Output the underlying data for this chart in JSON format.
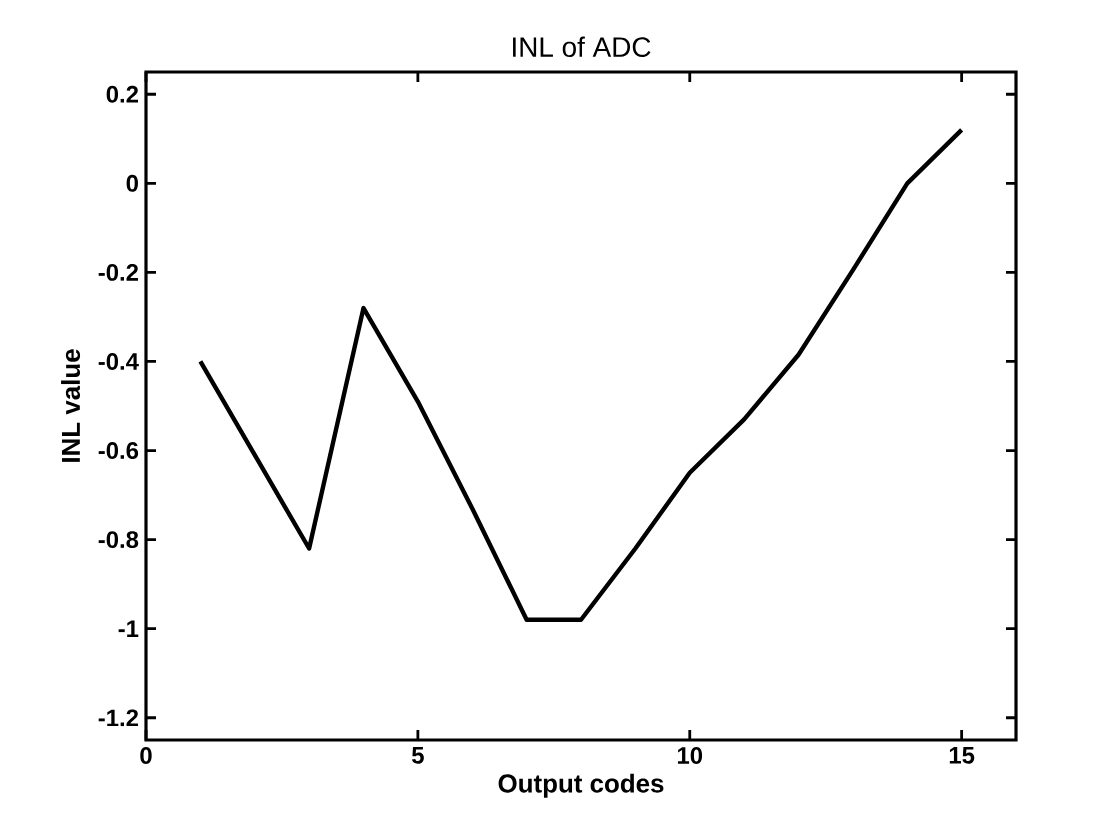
{
  "chart_data": {
    "type": "line",
    "title": "INL of ADC",
    "xlabel": "Output codes",
    "ylabel": "INL value",
    "x": [
      1,
      2,
      3,
      4,
      5,
      6,
      7,
      8,
      9,
      10,
      11,
      12,
      13,
      14,
      15
    ],
    "series": [
      {
        "color": "#000000",
        "values": [
          -0.4,
          -0.61,
          -0.82,
          -0.28,
          -0.49,
          -0.73,
          -0.98,
          -0.98,
          -0.82,
          -0.65,
          -0.53,
          -0.385,
          -0.195,
          0.0,
          0.12
        ]
      }
    ],
    "xlim": [
      0,
      16
    ],
    "ylim": [
      -1.25,
      0.25
    ],
    "xticks": [
      0,
      5,
      10,
      15
    ],
    "yticks": [
      -1.2,
      -1,
      -0.8,
      -0.6,
      -0.4,
      -0.2,
      0,
      0.2
    ],
    "grid": false,
    "marker": "none",
    "line_style": "solid"
  }
}
